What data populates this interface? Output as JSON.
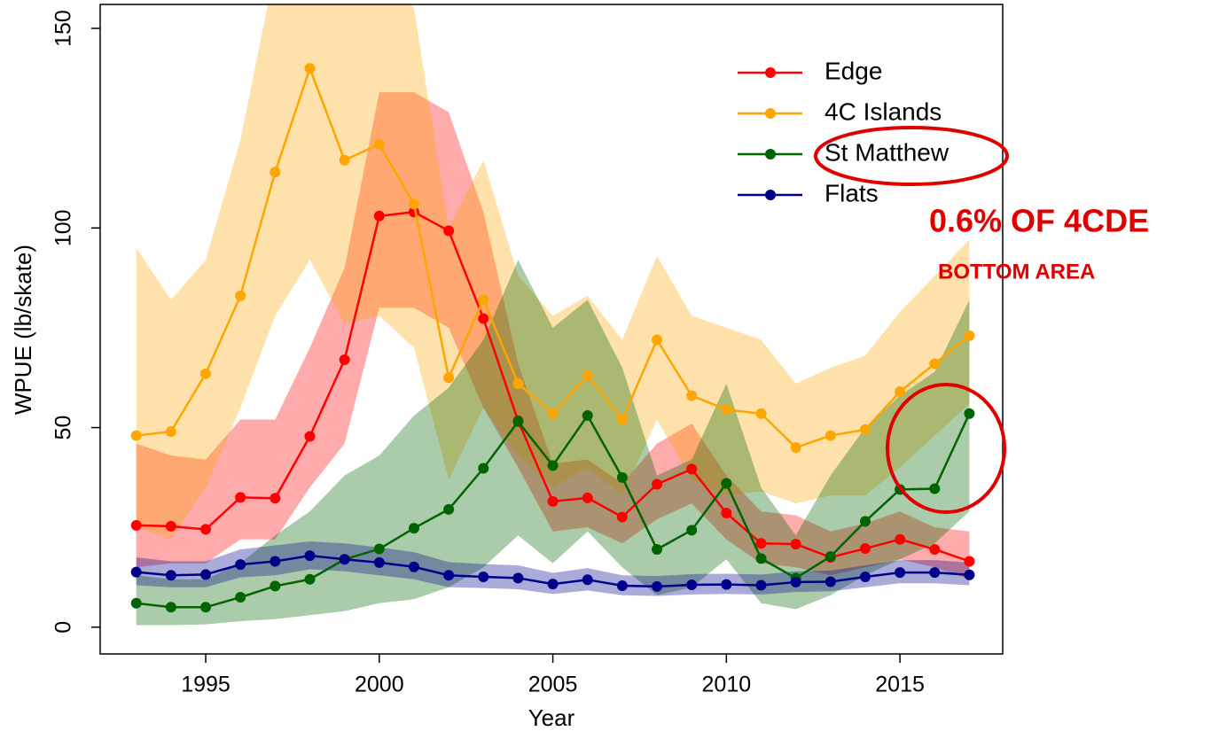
{
  "chart_data": {
    "type": "line",
    "xlabel": "Year",
    "ylabel": "WPUE (lb/skate)",
    "x": [
      1993,
      1994,
      1995,
      1996,
      1997,
      1998,
      1999,
      2000,
      2001,
      2002,
      2003,
      2004,
      2005,
      2006,
      2007,
      2008,
      2009,
      2010,
      2011,
      2012,
      2013,
      2014,
      2015,
      2016,
      2017
    ],
    "xlim": [
      1991.96,
      2017.96
    ],
    "xticks": [
      1995,
      2000,
      2005,
      2010,
      2015
    ],
    "ylim": [
      -6.7,
      156
    ],
    "yticks": [
      0,
      50,
      100,
      150
    ],
    "grid": false,
    "legend": "top-right",
    "series": [
      {
        "name": "Edge",
        "color": "#ff0000",
        "values": [
          25.5,
          25.3,
          24.5,
          32.5,
          32.3,
          47.8,
          67,
          103,
          104,
          99.3,
          77.3,
          51.7,
          31.5,
          32.4,
          27.6,
          35.8,
          39.6,
          28.6,
          21,
          20.8,
          17.5,
          19.7,
          22,
          19.5,
          16.5
        ],
        "lower": [
          15,
          16,
          16,
          22,
          22,
          35,
          46,
          80,
          80,
          75,
          55,
          40,
          24,
          25,
          21,
          27,
          31,
          22,
          16,
          15,
          13,
          15,
          17,
          15,
          12
        ],
        "upper": [
          46,
          43,
          42,
          52,
          52,
          70,
          90,
          134,
          134,
          129,
          104,
          66,
          41,
          42,
          36,
          46,
          51,
          38,
          29,
          28,
          24,
          26,
          29,
          25,
          24
        ]
      },
      {
        "name": "4C Islands",
        "color": "#ffa500",
        "values": [
          48,
          49,
          63.5,
          83,
          114,
          140,
          117,
          121,
          106,
          62.5,
          82,
          61,
          53.5,
          63,
          52,
          72,
          58,
          54.5,
          53.5,
          45,
          48,
          49.5,
          59,
          66,
          73
        ],
        "lower": [
          25,
          22,
          35,
          55,
          78,
          92,
          76,
          78,
          70,
          37,
          55,
          43,
          35,
          40,
          33,
          52,
          37,
          33,
          34,
          31,
          33,
          33,
          40,
          48,
          56
        ],
        "upper": [
          95,
          82,
          92,
          122,
          165,
          170,
          168,
          170,
          155,
          100,
          117,
          88,
          78,
          83,
          72,
          93,
          78,
          75,
          72,
          61,
          65,
          68,
          79,
          88,
          97
        ]
      },
      {
        "name": "St Matthew",
        "color": "#006400",
        "values": [
          6,
          5,
          5,
          7.5,
          10.3,
          12,
          17,
          19.6,
          24.8,
          29.5,
          39.8,
          51.5,
          40.5,
          53,
          37.5,
          19.5,
          24.3,
          36,
          17.2,
          12.3,
          17.7,
          26.5,
          34.5,
          34.7,
          53.5
        ],
        "lower": [
          0.5,
          0.5,
          0.7,
          1.5,
          2,
          3,
          4,
          6,
          7,
          10,
          15,
          23,
          16,
          24,
          15,
          8,
          10,
          17,
          6,
          4.5,
          8,
          13,
          17,
          21,
          29
        ],
        "upper": [
          13,
          12,
          12,
          16,
          23,
          29,
          38,
          43,
          53,
          60,
          72,
          92,
          75,
          82,
          65,
          38,
          42,
          61,
          35,
          23,
          38,
          50,
          58,
          64,
          82
        ]
      },
      {
        "name": "Flats",
        "color": "#00008b",
        "values": [
          13.8,
          13,
          13.2,
          15.7,
          16.5,
          17.9,
          17,
          16.2,
          15.1,
          13,
          12.6,
          12.3,
          10.8,
          11.9,
          10.4,
          10.2,
          10.6,
          10.7,
          10.5,
          11.3,
          11.4,
          12.6,
          13.7,
          13.7,
          13.1
        ],
        "lower": [
          10.5,
          10,
          10,
          12.5,
          13,
          14.5,
          14,
          13,
          12,
          10,
          9.8,
          9.5,
          8.3,
          9.2,
          8,
          7.8,
          8.2,
          8.3,
          8.2,
          8.8,
          9,
          10,
          11,
          11,
          10.5
        ],
        "upper": [
          17.5,
          16.5,
          16.5,
          19.5,
          20.5,
          21.5,
          21,
          20,
          18.8,
          16.3,
          15.8,
          15.5,
          13.6,
          14.8,
          13,
          12.8,
          13.3,
          13.4,
          13.2,
          14,
          14.2,
          15.5,
          16.8,
          16.8,
          16.2
        ]
      }
    ],
    "annotations": [
      "0.6% OF 4CDE",
      "BOTTOM AREA"
    ]
  }
}
